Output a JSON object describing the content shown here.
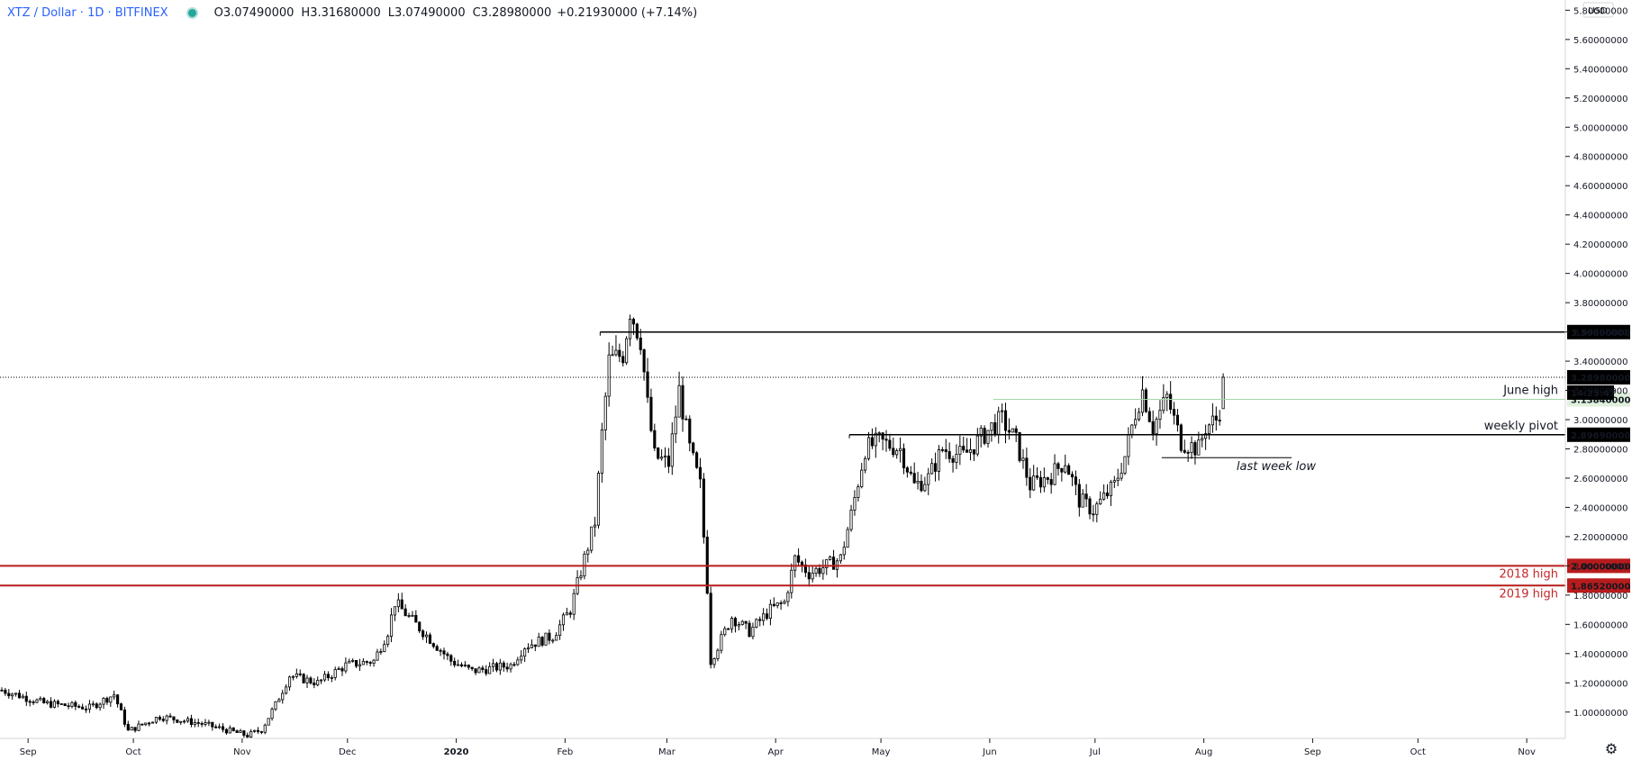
{
  "header": {
    "symbol": "XTZ / Dollar · 1D · BITFINEX",
    "open_label": "O",
    "open": "3.07490000",
    "high_label": "H",
    "high": "3.31680000",
    "low_label": "L",
    "low": "3.07490000",
    "close_label": "C",
    "close": "3.28980000",
    "change": "+0.21930000 (+7.14%)"
  },
  "axis": {
    "currency": "USD"
  },
  "colors": {
    "candle": "#000000",
    "red_line": "#b71c1c",
    "green_line": "#a5d6a7",
    "label_bg": "#000000",
    "red_label_bg": "#b71c1c"
  },
  "chart_data": {
    "type": "candlestick",
    "x_start": "2019-08-24",
    "y_ticks": [
      "1.00000000",
      "1.20000000",
      "1.40000000",
      "1.60000000",
      "1.80000000",
      "2.00000000",
      "2.20000000",
      "2.40000000",
      "2.60000000",
      "2.80000000",
      "3.00000000",
      "3.20000000",
      "3.40000000",
      "3.60000000",
      "3.80000000",
      "4.00000000",
      "4.20000000",
      "4.40000000",
      "4.60000000",
      "4.80000000",
      "5.00000000",
      "5.20000000",
      "5.40000000",
      "5.60000000",
      "5.80000000"
    ],
    "ylim": [
      0.82,
      5.87
    ],
    "x_ticks": [
      {
        "label": "Sep",
        "date": "2019-09-01"
      },
      {
        "label": "Oct",
        "date": "2019-10-01"
      },
      {
        "label": "Nov",
        "date": "2019-11-01"
      },
      {
        "label": "Dec",
        "date": "2019-12-01"
      },
      {
        "label": "2020",
        "date": "2020-01-01"
      },
      {
        "label": "Feb",
        "date": "2020-02-01"
      },
      {
        "label": "Mar",
        "date": "2020-03-01"
      },
      {
        "label": "Apr",
        "date": "2020-04-01"
      },
      {
        "label": "May",
        "date": "2020-05-01"
      },
      {
        "label": "Jun",
        "date": "2020-06-01"
      },
      {
        "label": "Jul",
        "date": "2020-07-01"
      },
      {
        "label": "Aug",
        "date": "2020-08-01"
      },
      {
        "label": "Sep",
        "date": "2020-09-01"
      },
      {
        "label": "Oct",
        "date": "2020-10-01"
      },
      {
        "label": "Nov",
        "date": "2020-11-01"
      }
    ],
    "x_end": "2020-11-12",
    "close_path": [
      [
        "2019-08-24",
        1.15
      ],
      [
        "2019-09-05",
        1.06
      ],
      [
        "2019-09-18",
        1.03
      ],
      [
        "2019-09-25",
        1.12
      ],
      [
        "2019-09-29",
        0.87
      ],
      [
        "2019-10-08",
        0.97
      ],
      [
        "2019-10-20",
        0.92
      ],
      [
        "2019-11-02",
        0.84
      ],
      [
        "2019-11-06",
        0.88
      ],
      [
        "2019-11-10",
        1.05
      ],
      [
        "2019-11-14",
        1.25
      ],
      [
        "2019-11-22",
        1.2
      ],
      [
        "2019-11-30",
        1.32
      ],
      [
        "2019-12-08",
        1.35
      ],
      [
        "2019-12-12",
        1.55
      ],
      [
        "2019-12-14",
        1.75
      ],
      [
        "2019-12-22",
        1.55
      ],
      [
        "2019-12-30",
        1.35
      ],
      [
        "2020-01-05",
        1.28
      ],
      [
        "2020-01-16",
        1.32
      ],
      [
        "2020-01-20",
        1.45
      ],
      [
        "2020-01-28",
        1.52
      ],
      [
        "2020-02-02",
        1.7
      ],
      [
        "2020-02-06",
        2.05
      ],
      [
        "2020-02-09",
        2.3
      ],
      [
        "2020-02-11",
        2.9
      ],
      [
        "2020-02-13",
        3.4
      ],
      [
        "2020-02-17",
        3.45
      ],
      [
        "2020-02-19",
        3.75
      ],
      [
        "2020-02-22",
        3.55
      ],
      [
        "2020-02-24",
        3.1
      ],
      [
        "2020-02-26",
        2.75
      ],
      [
        "2020-03-01",
        2.7
      ],
      [
        "2020-03-04",
        3.2
      ],
      [
        "2020-03-07",
        2.8
      ],
      [
        "2020-03-10",
        2.55
      ],
      [
        "2020-03-12",
        1.85
      ],
      [
        "2020-03-13",
        1.35
      ],
      [
        "2020-03-16",
        1.5
      ],
      [
        "2020-03-19",
        1.65
      ],
      [
        "2020-03-24",
        1.55
      ],
      [
        "2020-03-30",
        1.7
      ],
      [
        "2020-04-03",
        1.75
      ],
      [
        "2020-04-06",
        2.05
      ],
      [
        "2020-04-10",
        1.95
      ],
      [
        "2020-04-15",
        2.0
      ],
      [
        "2020-04-19",
        2.05
      ],
      [
        "2020-04-22",
        2.35
      ],
      [
        "2020-04-26",
        2.8
      ],
      [
        "2020-04-30",
        2.85
      ],
      [
        "2020-05-06",
        2.8
      ],
      [
        "2020-05-10",
        2.55
      ],
      [
        "2020-05-14",
        2.6
      ],
      [
        "2020-05-18",
        2.8
      ],
      [
        "2020-05-24",
        2.75
      ],
      [
        "2020-06-01",
        2.95
      ],
      [
        "2020-06-04",
        3.0
      ],
      [
        "2020-06-08",
        2.85
      ],
      [
        "2020-06-12",
        2.55
      ],
      [
        "2020-06-18",
        2.62
      ],
      [
        "2020-06-22",
        2.72
      ],
      [
        "2020-06-26",
        2.45
      ],
      [
        "2020-06-30",
        2.38
      ],
      [
        "2020-07-06",
        2.55
      ],
      [
        "2020-07-09",
        2.75
      ],
      [
        "2020-07-12",
        3.05
      ],
      [
        "2020-07-14",
        3.2
      ],
      [
        "2020-07-17",
        2.95
      ],
      [
        "2020-07-21",
        3.15
      ],
      [
        "2020-07-25",
        2.85
      ],
      [
        "2020-07-30",
        2.8
      ],
      [
        "2020-08-01",
        2.95
      ],
      [
        "2020-08-04",
        3.0
      ],
      [
        "2020-08-05",
        3.07
      ],
      [
        "2020-08-06",
        3.29
      ]
    ],
    "last_candle": {
      "o": 3.0749,
      "h": 3.3168,
      "l": 3.0749,
      "c": 3.2898
    },
    "levels": [
      {
        "value": 3.5989,
        "label": "3.59890000",
        "from": "2020-02-11",
        "style": "black",
        "text": ""
      },
      {
        "value": 2.8969,
        "label": "2.89690000",
        "from": "2020-04-22",
        "style": "black",
        "text": "weekly pivot"
      },
      {
        "value": 3.1384,
        "label": "3.13840000",
        "from": "2020-06-02",
        "style": "green",
        "text": "June high"
      },
      {
        "value": 2.0,
        "label": "2.00000000",
        "from": "2019-08-24",
        "style": "red",
        "text": "2018 high"
      },
      {
        "value": 1.8652,
        "label": "1.86520000",
        "from": "2019-08-24",
        "style": "red",
        "text": "2019 high"
      }
    ],
    "last_week_low": {
      "value": 2.74,
      "from": "2020-07-20",
      "to": "2020-08-26",
      "text": "last week low"
    },
    "current": {
      "value": 3.2898,
      "label": "3.28980000",
      "countdown": "14:25:47"
    }
  }
}
